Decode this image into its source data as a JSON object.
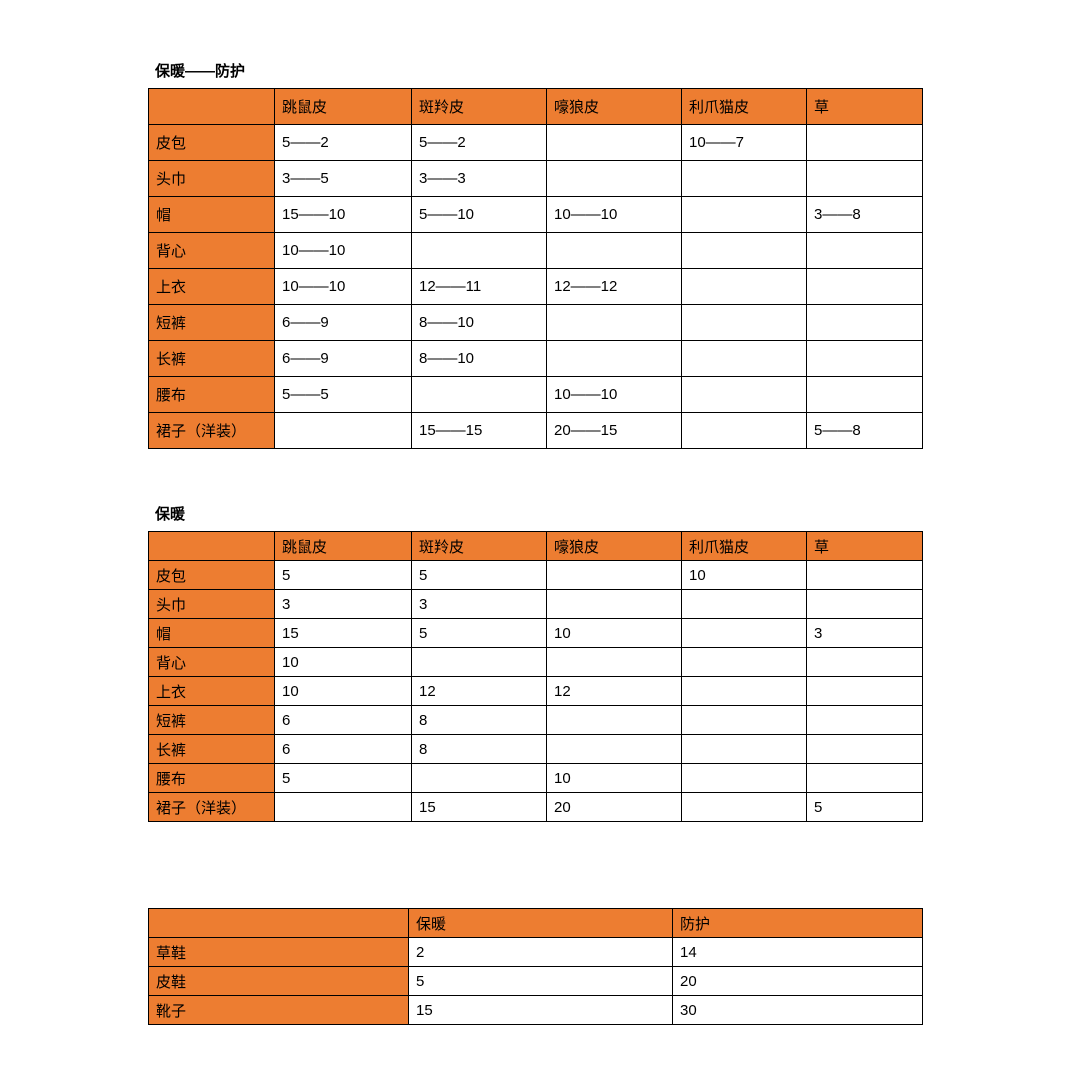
{
  "page": {
    "background": "#ffffff"
  },
  "colors": {
    "header_fill": "#ED7D31",
    "border": "#000000",
    "text": "#000000",
    "cell_background": "#ffffff"
  },
  "tables": [
    {
      "title": "保暖——防护",
      "columns": [
        "",
        "跳鼠皮",
        "斑羚皮",
        "嚎狼皮",
        "利爪猫皮",
        "草"
      ],
      "rows": [
        {
          "label": "皮包",
          "values": [
            "5——2",
            "5——2",
            "",
            "10——7",
            ""
          ]
        },
        {
          "label": "头巾",
          "values": [
            "3——5",
            "3——3",
            "",
            "",
            ""
          ]
        },
        {
          "label": "帽",
          "values": [
            "15——10",
            "5——10",
            "10——10",
            "",
            "3——8"
          ]
        },
        {
          "label": "背心",
          "values": [
            "10——10",
            "",
            "",
            "",
            ""
          ]
        },
        {
          "label": "上衣",
          "values": [
            "10——10",
            "12——11",
            "12——12",
            "",
            ""
          ]
        },
        {
          "label": "短裤",
          "values": [
            "6——9",
            "8——10",
            "",
            "",
            ""
          ]
        },
        {
          "label": "长裤",
          "values": [
            "6——9",
            "8——10",
            "",
            "",
            ""
          ]
        },
        {
          "label": "腰布",
          "values": [
            "5——5",
            "",
            "10——10",
            "",
            ""
          ]
        },
        {
          "label": "裙子（洋装）",
          "values": [
            "",
            "15——15",
            "20——15",
            "",
            "5——8"
          ]
        }
      ]
    },
    {
      "title": "保暖",
      "columns": [
        "",
        "跳鼠皮",
        "斑羚皮",
        "嚎狼皮",
        "利爪猫皮",
        "草"
      ],
      "rows": [
        {
          "label": "皮包",
          "values": [
            "5",
            "5",
            "",
            "10",
            ""
          ]
        },
        {
          "label": "头巾",
          "values": [
            "3",
            "3",
            "",
            "",
            ""
          ]
        },
        {
          "label": "帽",
          "values": [
            "15",
            "5",
            "10",
            "",
            "3"
          ]
        },
        {
          "label": "背心",
          "values": [
            "10",
            "",
            "",
            "",
            ""
          ]
        },
        {
          "label": "上衣",
          "values": [
            "10",
            "12",
            "12",
            "",
            ""
          ]
        },
        {
          "label": "短裤",
          "values": [
            "6",
            "8",
            "",
            "",
            ""
          ]
        },
        {
          "label": "长裤",
          "values": [
            "6",
            "8",
            "",
            "",
            ""
          ]
        },
        {
          "label": "腰布",
          "values": [
            "5",
            "",
            "10",
            "",
            ""
          ]
        },
        {
          "label": "裙子（洋装）",
          "values": [
            "",
            "15",
            "20",
            "",
            "5"
          ]
        }
      ]
    },
    {
      "title": "",
      "columns": [
        "",
        "保暖",
        "防护"
      ],
      "rows": [
        {
          "label": "草鞋",
          "values": [
            "2",
            "14"
          ]
        },
        {
          "label": "皮鞋",
          "values": [
            "5",
            "20"
          ]
        },
        {
          "label": "靴子",
          "values": [
            "15",
            "30"
          ]
        }
      ]
    }
  ]
}
